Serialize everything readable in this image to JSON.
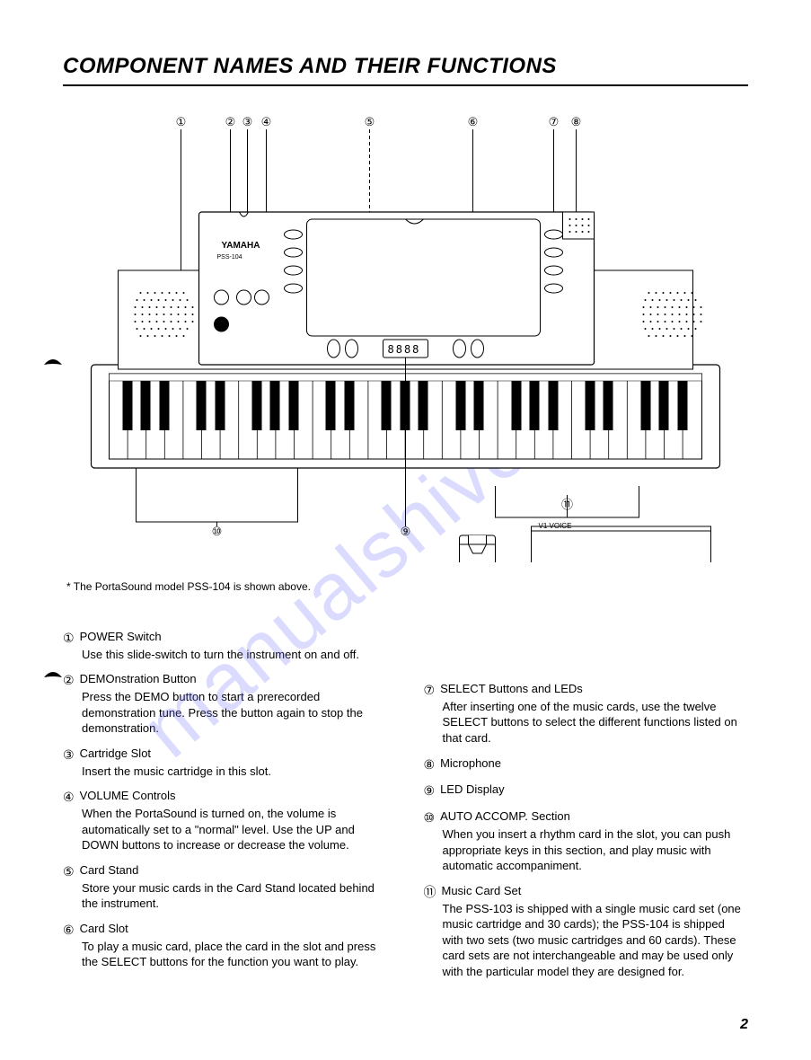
{
  "title": "COMPONENT NAMES AND THEIR FUNCTIONS",
  "footnote": "*  The PortaSound model PSS-104 is shown above.",
  "page_number": "2",
  "watermark": "manualshive.com",
  "callout_numbers": [
    "①",
    "②",
    "③",
    "④",
    "⑤",
    "⑥",
    "⑦",
    "⑧",
    "⑨",
    "⑩",
    "⑪"
  ],
  "brand": "YAMAHA",
  "model": "PSS-104",
  "card_label": "V1   VOICE",
  "left_col": [
    {
      "n": "①",
      "title": "POWER Switch",
      "body": "Use this slide-switch to turn the instrument on and off."
    },
    {
      "n": "②",
      "title": "DEMOnstration Button",
      "body": "Press the DEMO button to start a prerecorded demonstration tune. Press the button again to stop the demonstration."
    },
    {
      "n": "③",
      "title": "Cartridge Slot",
      "body": "Insert the music cartridge in this slot."
    },
    {
      "n": "④",
      "title": "VOLUME Controls",
      "body": "When the PortaSound is turned on, the volume is automatically set to a \"normal\" level. Use the UP and DOWN buttons to increase or decrease the volume."
    },
    {
      "n": "⑤",
      "title": "Card Stand",
      "body": "Store your music cards in the Card Stand located behind the instrument."
    },
    {
      "n": "⑥",
      "title": "Card Slot",
      "body": "To play a music card, place the card in the slot and press the SELECT buttons for the function you want to play."
    }
  ],
  "right_col": [
    {
      "n": "⑦",
      "title": "SELECT Buttons and LEDs",
      "body": "After inserting one of the music cards, use the twelve SELECT buttons to select the different functions listed on that card."
    },
    {
      "n": "⑧",
      "title": "Microphone",
      "body": ""
    },
    {
      "n": "⑨",
      "title": "LED Display",
      "body": ""
    },
    {
      "n": "⑩",
      "title": "AUTO ACCOMP. Section",
      "body": "When you insert a rhythm card in the slot, you can push appropriate keys in this section, and play music with automatic accompaniment."
    },
    {
      "n": "⑪",
      "title": "Music Card Set",
      "body": "The PSS-103 is shipped with a single music card set (one music cartridge and 30 cards); the PSS-104 is shipped with two sets (two music cartridges and 60 cards). These card sets are not interchangeable and may be used only with the particular model they are designed for."
    }
  ],
  "colors": {
    "text": "#000000",
    "bg": "#ffffff",
    "watermark": "rgba(110,110,255,0.25)"
  }
}
